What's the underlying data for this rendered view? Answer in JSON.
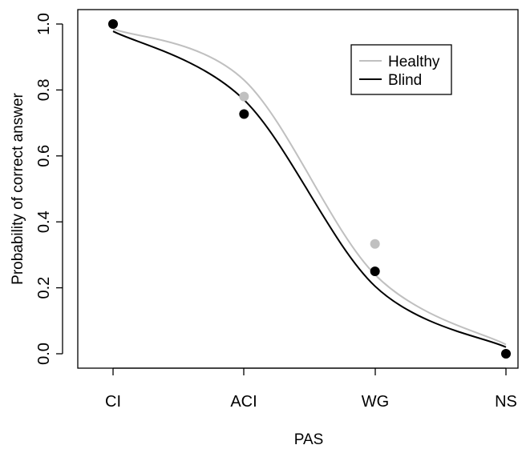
{
  "chart_data": {
    "type": "scatter",
    "title": "",
    "xlabel": "PAS",
    "ylabel": "Probability of correct answer",
    "categories": [
      "CI",
      "ACI",
      "WG",
      "NS"
    ],
    "x_positions": [
      1,
      2,
      3,
      4
    ],
    "ylim": [
      0,
      1
    ],
    "yticks": [
      "0.0",
      "0.2",
      "0.4",
      "0.6",
      "0.8",
      "1.0"
    ],
    "grid": false,
    "legend_position": "top-right",
    "series": [
      {
        "name": "Healthy",
        "color": "#c0c0c0",
        "points": [
          1.0,
          0.78,
          0.333,
          0.0
        ],
        "curve": [
          0.985,
          0.83,
          0.24,
          0.028
        ]
      },
      {
        "name": "Blind",
        "color": "#000000",
        "points": [
          1.0,
          0.727,
          0.25,
          0.0
        ],
        "curve": [
          0.978,
          0.77,
          0.205,
          0.02
        ]
      }
    ]
  }
}
